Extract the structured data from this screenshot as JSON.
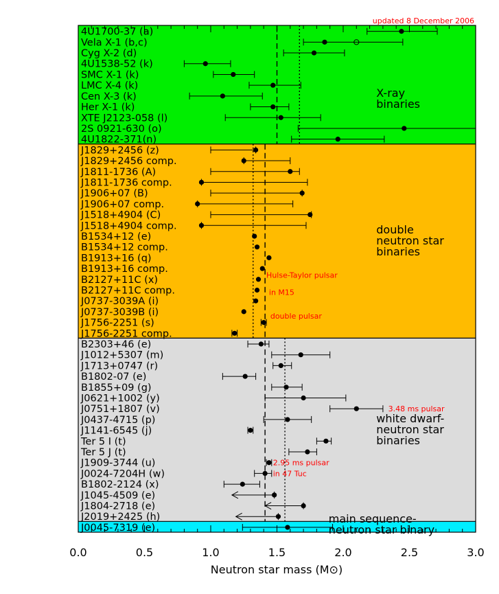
{
  "chart_data": {
    "type": "scatter",
    "title": "",
    "xlabel": "Neutron star mass (M⊙)",
    "xlim": [
      0.0,
      3.0
    ],
    "xticks": [
      "0.0",
      "0.5",
      "1.0",
      "1.5",
      "2.0",
      "2.5",
      "3.0"
    ],
    "annotation_top": "updated 8 December 2006",
    "reference_lines": {
      "dashed_top": 1.5,
      "dotted_top": 1.67,
      "dashed": 1.41,
      "dotted": 1.56,
      "dotted_dns": 1.32
    },
    "colors": {
      "xray": "#00ee00",
      "dns": "#ffbb00",
      "wd": "#dcdcdc",
      "ms": "#00eeff"
    },
    "groups": [
      {
        "key": "xray",
        "color": "#00ee00",
        "title_lines": [
          "X-ray",
          "binaries"
        ],
        "points": [
          {
            "label": "4U1700-37 (a)",
            "value": 2.44,
            "lo": 2.18,
            "hi": 2.71
          },
          {
            "label": "Vela X-1 (b,c)",
            "value": 1.86,
            "lo": 1.7,
            "hi": 2.45,
            "alt": 2.1
          },
          {
            "label": "Cyg X-2 (d)",
            "value": 1.78,
            "lo": 1.55,
            "hi": 2.01
          },
          {
            "label": "4U1538-52 (k)",
            "value": 0.96,
            "lo": 0.8,
            "hi": 1.15
          },
          {
            "label": "SMC X-1 (k)",
            "value": 1.17,
            "lo": 1.02,
            "hi": 1.33
          },
          {
            "label": "LMC X-4 (k)",
            "value": 1.47,
            "lo": 1.29,
            "hi": 1.68
          },
          {
            "label": "Cen X-3 (k)",
            "value": 1.09,
            "lo": 0.84,
            "hi": 1.39
          },
          {
            "label": "Her X-1 (k)",
            "value": 1.47,
            "lo": 1.3,
            "hi": 1.59
          },
          {
            "label": "XTE J2123-058 (l)",
            "value": 1.53,
            "lo": 1.11,
            "hi": 1.83
          },
          {
            "label": "2S 0921-630 (o)",
            "value": 2.46,
            "lo": 1.66,
            "hi": 3.0
          },
          {
            "label": "4U1822-371(n)",
            "value": 1.96,
            "lo": 1.61,
            "hi": 2.31
          }
        ]
      },
      {
        "key": "dns",
        "color": "#ffbb00",
        "title_lines": [
          "double",
          "neutron star",
          "binaries"
        ],
        "points": [
          {
            "label": "J1829+2456 (z)",
            "value": 1.34,
            "lo": 1.0,
            "hi": 1.34
          },
          {
            "label": "J1829+2456 comp.",
            "value": 1.25,
            "lo": 1.25,
            "hi": 1.6
          },
          {
            "label": "J1811-1736 (A)",
            "value": 1.6,
            "lo": 1.0,
            "hi": 1.67
          },
          {
            "label": "J1811-1736 comp.",
            "value": 0.93,
            "lo": 0.93,
            "hi": 1.73
          },
          {
            "label": "J1906+07 (B)",
            "value": 1.69,
            "lo": 1.0,
            "hi": 1.69
          },
          {
            "label": "J1906+07 comp.",
            "value": 0.9,
            "lo": 0.9,
            "hi": 1.62
          },
          {
            "label": "J1518+4904 (C)",
            "value": 1.75,
            "lo": 1.0,
            "hi": 1.76
          },
          {
            "label": "J1518+4904 comp.",
            "value": 0.93,
            "lo": 0.93,
            "hi": 1.72
          },
          {
            "label": "B1534+12 (e)",
            "value": 1.33,
            "lo": 1.33,
            "hi": 1.33
          },
          {
            "label": "B1534+12 comp.",
            "value": 1.35,
            "lo": 1.35,
            "hi": 1.35
          },
          {
            "label": "B1913+16 (q)",
            "value": 1.44,
            "lo": 1.44,
            "hi": 1.44
          },
          {
            "label": "B1913+16 comp.",
            "value": 1.39,
            "lo": 1.39,
            "hi": 1.39
          },
          {
            "label": "B2127+11C (x)",
            "value": 1.36,
            "lo": 1.36,
            "hi": 1.36
          },
          {
            "label": "B2127+11C comp.",
            "value": 1.35,
            "lo": 1.35,
            "hi": 1.35
          },
          {
            "label": "J0737-3039A (i)",
            "value": 1.34,
            "lo": 1.34,
            "hi": 1.34
          },
          {
            "label": "J0737-3039B (i)",
            "value": 1.25,
            "lo": 1.25,
            "hi": 1.25
          },
          {
            "label": "J1756-2251 (s)",
            "value": 1.4,
            "lo": 1.38,
            "hi": 1.42
          },
          {
            "label": "J1756-2251 comp.",
            "value": 1.18,
            "lo": 1.16,
            "hi": 1.2
          }
        ],
        "annotations": [
          {
            "text": "Hulse-Taylor pulsar",
            "row": 11.6,
            "x": 1.42
          },
          {
            "text": "in M15",
            "row": 13.2,
            "x": 1.44
          },
          {
            "text": "double pulsar",
            "row": 15.4,
            "x": 1.45
          }
        ]
      },
      {
        "key": "wd",
        "color": "#dcdcdc",
        "title_lines": [
          "white dwarf-",
          "neutron star",
          "binaries"
        ],
        "points": [
          {
            "label": "B2303+46 (e)",
            "value": 1.38,
            "lo": 1.28,
            "hi": 1.44
          },
          {
            "label": "J1012+5307 (m)",
            "value": 1.68,
            "lo": 1.46,
            "hi": 1.9
          },
          {
            "label": "J1713+0747 (r)",
            "value": 1.53,
            "lo": 1.47,
            "hi": 1.61
          },
          {
            "label": "B1802-07 (e)",
            "value": 1.26,
            "lo": 1.09,
            "hi": 1.34
          },
          {
            "label": "B1855+09 (g)",
            "value": 1.57,
            "lo": 1.46,
            "hi": 1.69
          },
          {
            "label": "J0621+1002 (y)",
            "value": 1.7,
            "lo": 1.41,
            "hi": 2.02
          },
          {
            "label": "J0751+1807 (v)",
            "value": 2.1,
            "lo": 1.9,
            "hi": 2.3
          },
          {
            "label": "J0437-4715 (p)",
            "value": 1.58,
            "lo": 1.4,
            "hi": 1.76
          },
          {
            "label": "J1141-6545 (j)",
            "value": 1.3,
            "lo": 1.28,
            "hi": 1.32
          },
          {
            "label": "Ter 5 I (t)",
            "value": 1.87,
            "lo": 1.8,
            "hi": 1.91
          },
          {
            "label": "Ter 5 J (t)",
            "value": 1.73,
            "lo": 1.59,
            "hi": 1.8
          },
          {
            "label": "J1909-3744 (u)",
            "value": 1.44,
            "lo": 1.42,
            "hi": 1.46
          },
          {
            "label": "J0024-7204H (w)",
            "value": 1.41,
            "lo": 1.33,
            "hi": 1.46
          },
          {
            "label": "B1802-2124 (x)",
            "value": 1.24,
            "lo": 1.1,
            "hi": 1.37
          },
          {
            "label": "J1045-4509 (e)",
            "value": 1.48,
            "lo": 1.16,
            "hi": 1.48,
            "upper_limit": true
          },
          {
            "label": "J1804-2718 (e)",
            "value": 1.7,
            "lo": 1.41,
            "hi": 1.7,
            "upper_limit": true
          },
          {
            "label": "J2019+2425 (h)",
            "value": 1.51,
            "lo": 1.19,
            "hi": 1.51,
            "upper_limit": true
          }
        ],
        "annotations": [
          {
            "text": "3.48 ms pulsar",
            "row": 6,
            "x": 2.34
          },
          {
            "text": "2.95 ms pulsar",
            "row": 11,
            "x": 1.47
          },
          {
            "text": "in 47 Tuc",
            "row": 12,
            "x": 1.47
          }
        ]
      },
      {
        "key": "ms",
        "color": "#00eeff",
        "title_lines": [
          "main sequence-",
          "neutron star binary"
        ],
        "points": [
          {
            "label": "J0045-7319 (e)",
            "value": 1.58,
            "lo": 1.24,
            "hi": 1.92
          }
        ]
      }
    ]
  }
}
